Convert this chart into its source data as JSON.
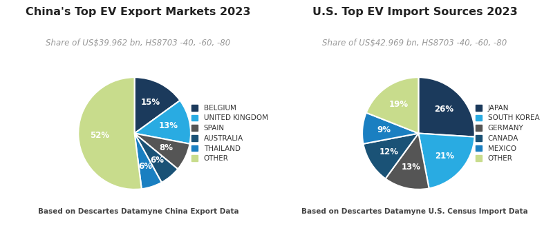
{
  "chart1": {
    "title": "China's Top EV Export Markets 2023",
    "subtitle": "Share of US$39.962 bn, HS8703 -40, -60, -80",
    "labels": [
      "BELGIUM",
      "UNITED KINGDOM",
      "SPAIN",
      "AUSTRALIA",
      "THAILAND",
      "OTHER"
    ],
    "values": [
      15,
      13,
      8,
      6,
      6,
      52
    ],
    "colors": [
      "#1b3a5c",
      "#29abe2",
      "#555555",
      "#1a5276",
      "#1a7fc1",
      "#c8dc8c"
    ],
    "pct_labels": [
      "15%",
      "13%",
      "8%",
      "6%",
      "6%",
      "52%"
    ],
    "footnote": "Based on Descartes Datamyne China Export Data",
    "startangle": 90
  },
  "chart2": {
    "title": "U.S. Top EV Import Sources 2023",
    "subtitle": "Share of US$42.969 bn, HS8703 -40, -60, -80",
    "labels": [
      "JAPAN",
      "SOUTH KOREA",
      "GERMANY",
      "CANADA",
      "MEXICO",
      "OTHER"
    ],
    "values": [
      26,
      21,
      13,
      12,
      9,
      19
    ],
    "colors": [
      "#1b3a5c",
      "#29abe2",
      "#555555",
      "#1a5276",
      "#1a7fc1",
      "#c8dc8c"
    ],
    "pct_labels": [
      "26%",
      "21%",
      "13%",
      "12%",
      "9%",
      "19%"
    ],
    "footnote": "Based on Descartes Datamyne U.S. Census Import Data",
    "startangle": 90
  },
  "bg_color": "#ffffff",
  "title_fontsize": 11.5,
  "subtitle_fontsize": 8.5,
  "pct_fontsize": 8.5,
  "legend_fontsize": 7.5,
  "footnote_fontsize": 7.5
}
